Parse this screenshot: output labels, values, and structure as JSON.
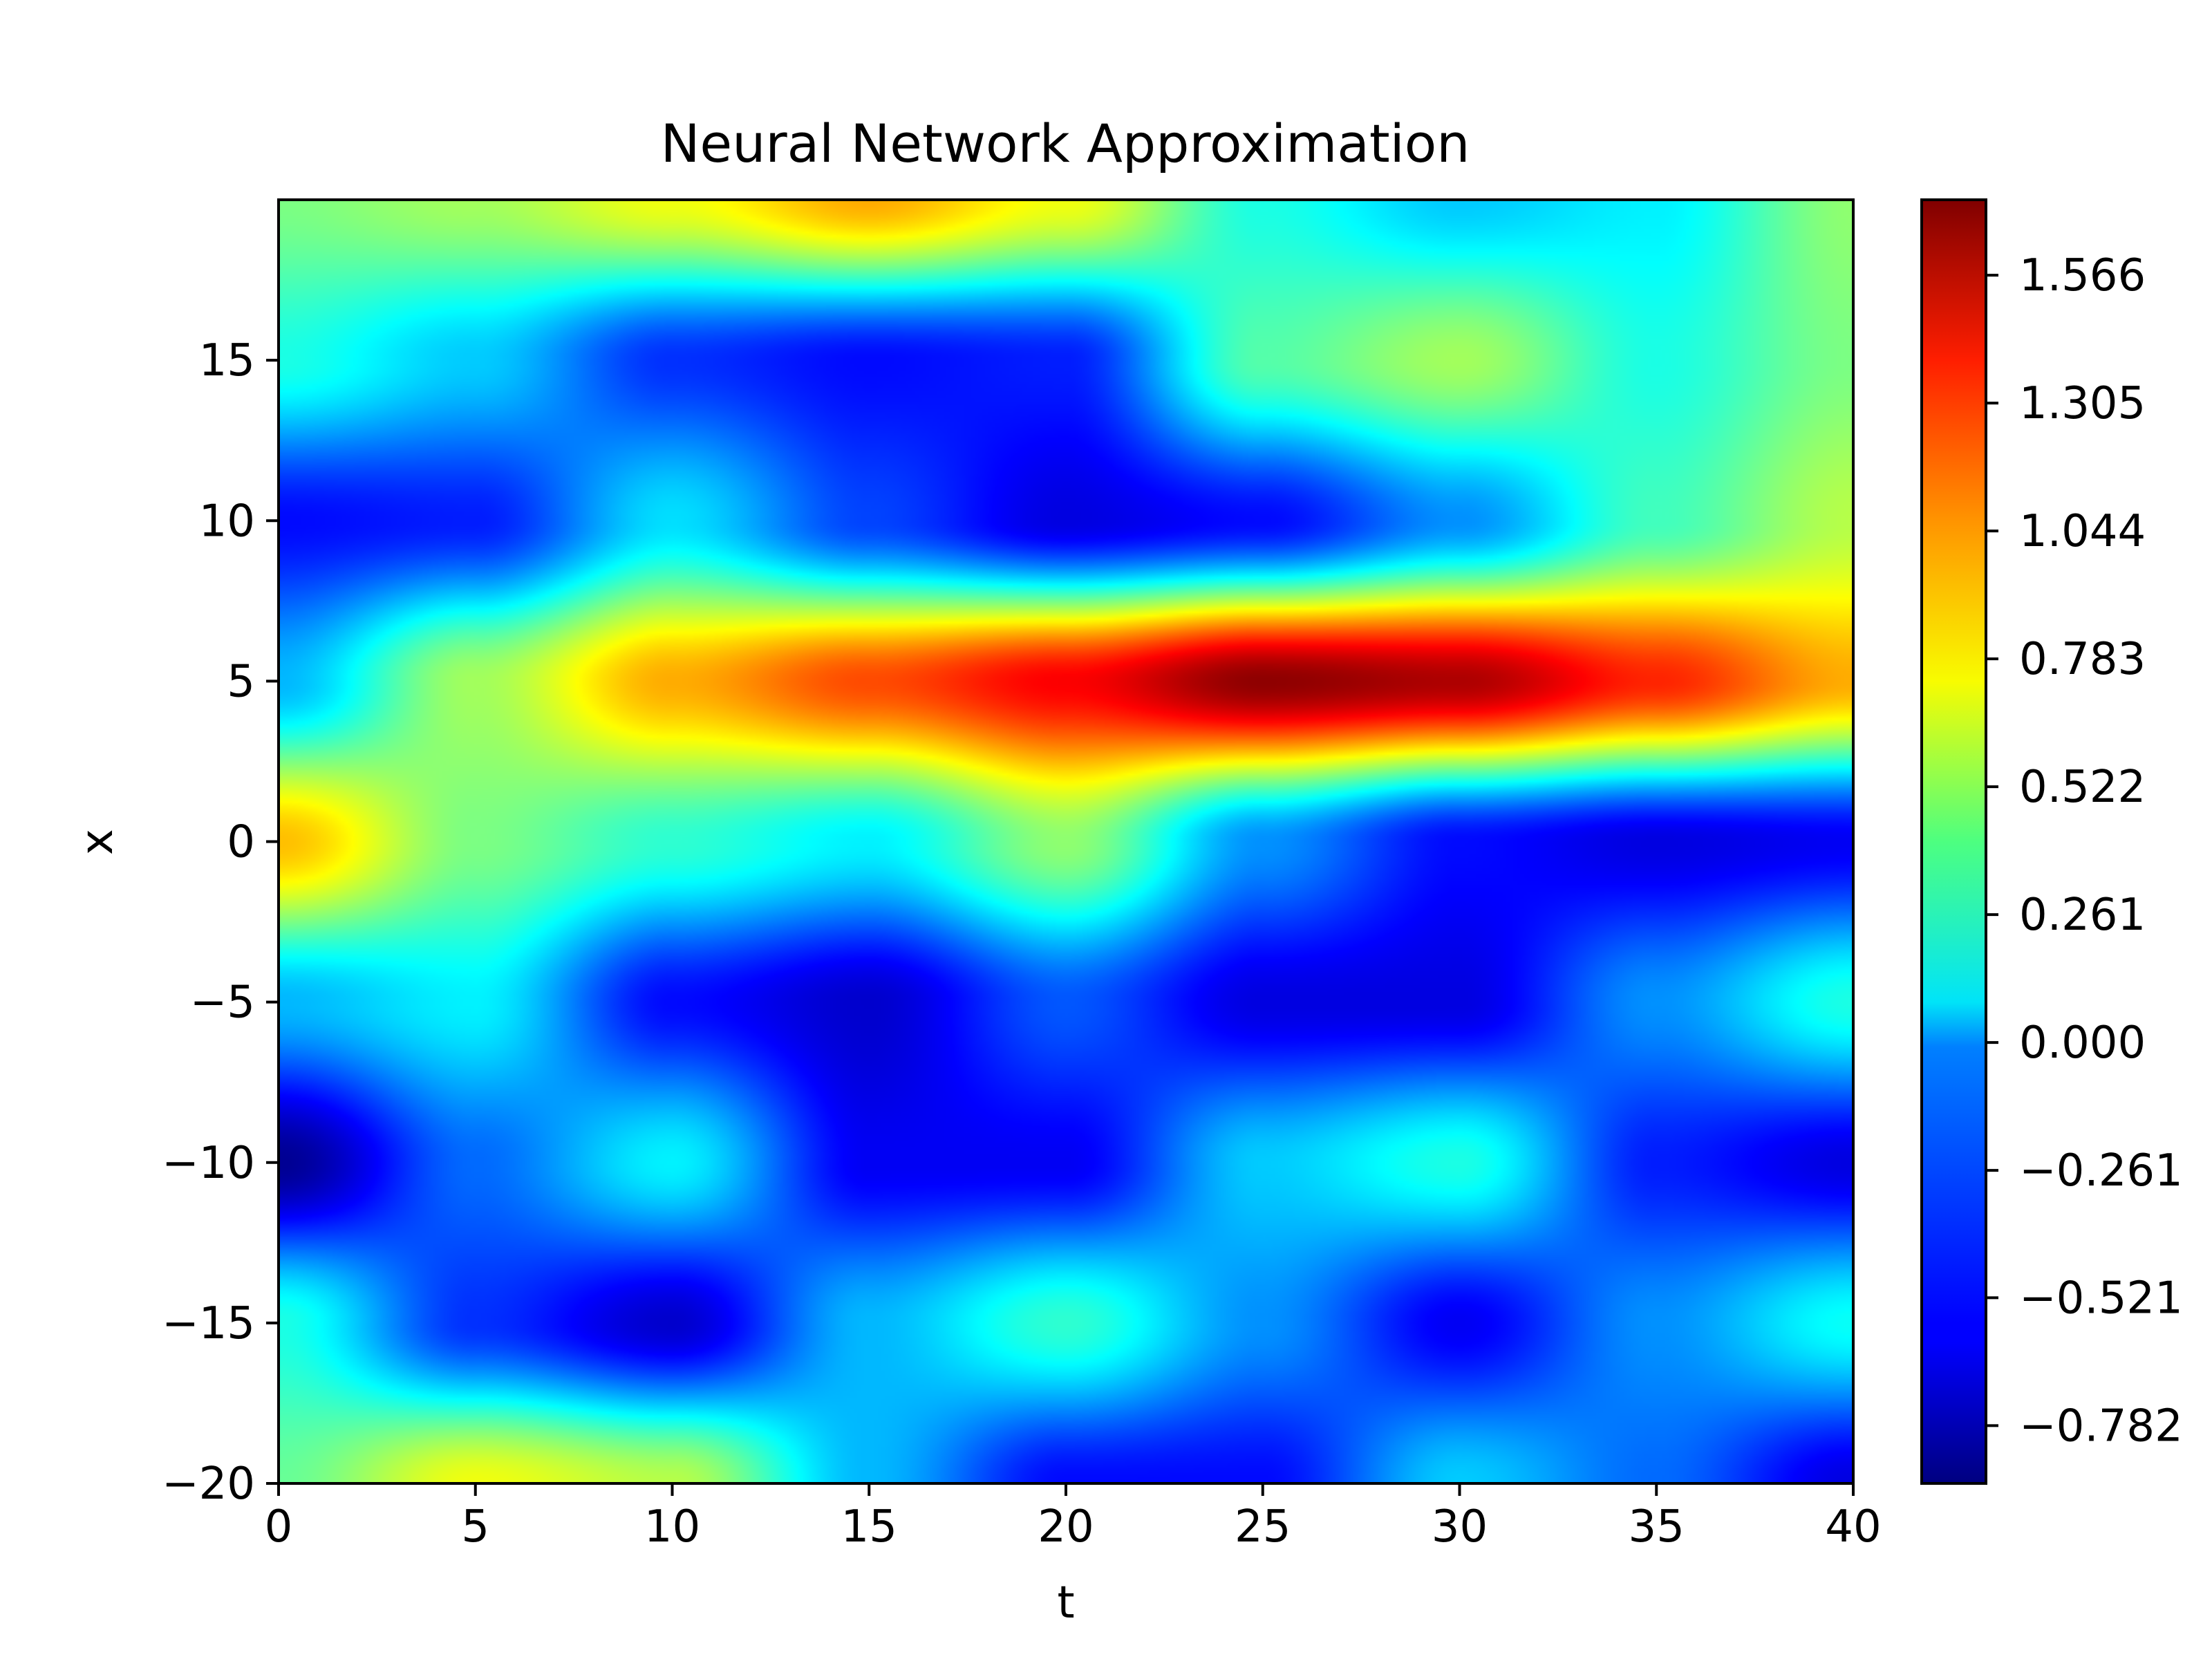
{
  "chart_data": {
    "type": "heatmap",
    "title": "Neural Network Approximation",
    "xlabel": "t",
    "ylabel": "x",
    "xlim": [
      0,
      40
    ],
    "ylim": [
      -20,
      20
    ],
    "xticks": [
      0,
      5,
      10,
      15,
      20,
      25,
      30,
      35,
      40
    ],
    "xtick_labels": [
      "0",
      "5",
      "10",
      "15",
      "20",
      "25",
      "30",
      "35",
      "40"
    ],
    "yticks": [
      -20,
      -15,
      -10,
      -5,
      0,
      5,
      10,
      15
    ],
    "ytick_labels": [
      "−20",
      "−15",
      "−10",
      "−5",
      "0",
      "5",
      "10",
      "15"
    ],
    "colormap": "jet",
    "colorbar": {
      "vmin": -0.9,
      "vmax": 1.72,
      "ticks": [
        -0.782,
        -0.521,
        -0.261,
        0.0,
        0.261,
        0.522,
        0.783,
        1.044,
        1.305,
        1.566
      ],
      "tick_labels": [
        "−0.782",
        "−0.521",
        "−0.261",
        "0.000",
        "0.261",
        "0.522",
        "0.783",
        "1.044",
        "1.305",
        "1.566"
      ]
    },
    "grid": false,
    "z_grid": {
      "t": [
        0,
        5,
        10,
        15,
        20,
        25,
        30,
        35,
        40
      ],
      "x": [
        -20,
        -15,
        -10,
        -5,
        0,
        5,
        10,
        15,
        20
      ],
      "z": [
        [
          0.35,
          0.7,
          0.55,
          -0.1,
          -0.55,
          -0.55,
          -0.05,
          -0.3,
          -0.65
        ],
        [
          0.15,
          -0.45,
          -0.7,
          -0.1,
          0.2,
          -0.2,
          -0.6,
          -0.2,
          0.1
        ],
        [
          -0.85,
          -0.3,
          0.05,
          -0.6,
          -0.6,
          -0.05,
          0.15,
          -0.5,
          -0.65
        ],
        [
          -0.1,
          0.05,
          -0.55,
          -0.7,
          -0.35,
          -0.65,
          -0.65,
          -0.2,
          0.15
        ],
        [
          0.9,
          0.4,
          0.2,
          0.05,
          0.45,
          -0.2,
          -0.55,
          -0.65,
          -0.6
        ],
        [
          -0.1,
          0.5,
          0.95,
          1.2,
          1.4,
          1.68,
          1.6,
          1.3,
          0.95
        ],
        [
          -0.55,
          -0.5,
          0.0,
          -0.4,
          -0.65,
          -0.55,
          -0.2,
          0.25,
          0.55
        ],
        [
          0.15,
          -0.05,
          -0.45,
          -0.55,
          -0.5,
          0.3,
          0.5,
          0.15,
          0.4
        ],
        [
          0.4,
          0.5,
          0.7,
          0.95,
          0.7,
          0.15,
          -0.05,
          0.05,
          0.45
        ]
      ]
    }
  }
}
